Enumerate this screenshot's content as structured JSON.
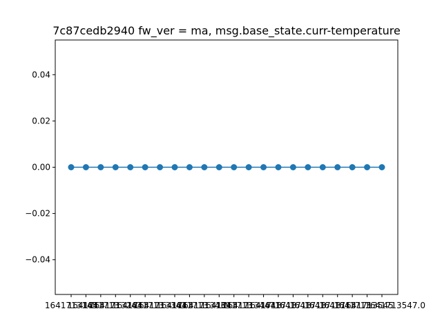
{
  "chart_data": {
    "type": "line",
    "title": "7c87cedb2940 fw_ver = ma, msg.base_state.curr-temperature",
    "xlabel": "",
    "ylabel": "",
    "x": [
      1,
      2,
      3,
      4,
      5,
      6,
      7,
      8,
      9,
      10,
      11,
      12,
      13,
      14,
      15,
      16,
      17,
      18,
      19,
      20,
      21,
      22
    ],
    "series": [
      {
        "values": [
          0,
          0,
          0,
          0,
          0,
          0,
          0,
          0,
          0,
          0,
          0,
          0,
          0,
          0,
          0,
          0,
          0,
          0,
          0,
          0,
          0,
          0
        ]
      }
    ],
    "ylim": [
      -0.055,
      0.055
    ],
    "yticks": [
      0.04,
      0.02,
      0.0,
      -0.02,
      -0.04
    ],
    "ytick_labels": [
      "0.04",
      "0.02",
      "0.00",
      "−0.02",
      "−0.04"
    ],
    "xtick_labels": [
      "1641713145",
      "1641713",
      "1641713",
      "1641713243",
      "1641713",
      "1641713",
      "1641713341",
      "1641713",
      "1641713",
      "1641713439",
      "1641713",
      "1641713",
      "1641713447",
      "1641713",
      "1641713",
      "1641713",
      "1641713",
      "1641713",
      "1641713",
      "1641713",
      "1641713545",
      "1641713547.0"
    ],
    "grid": false,
    "color": "#1f77b4"
  }
}
